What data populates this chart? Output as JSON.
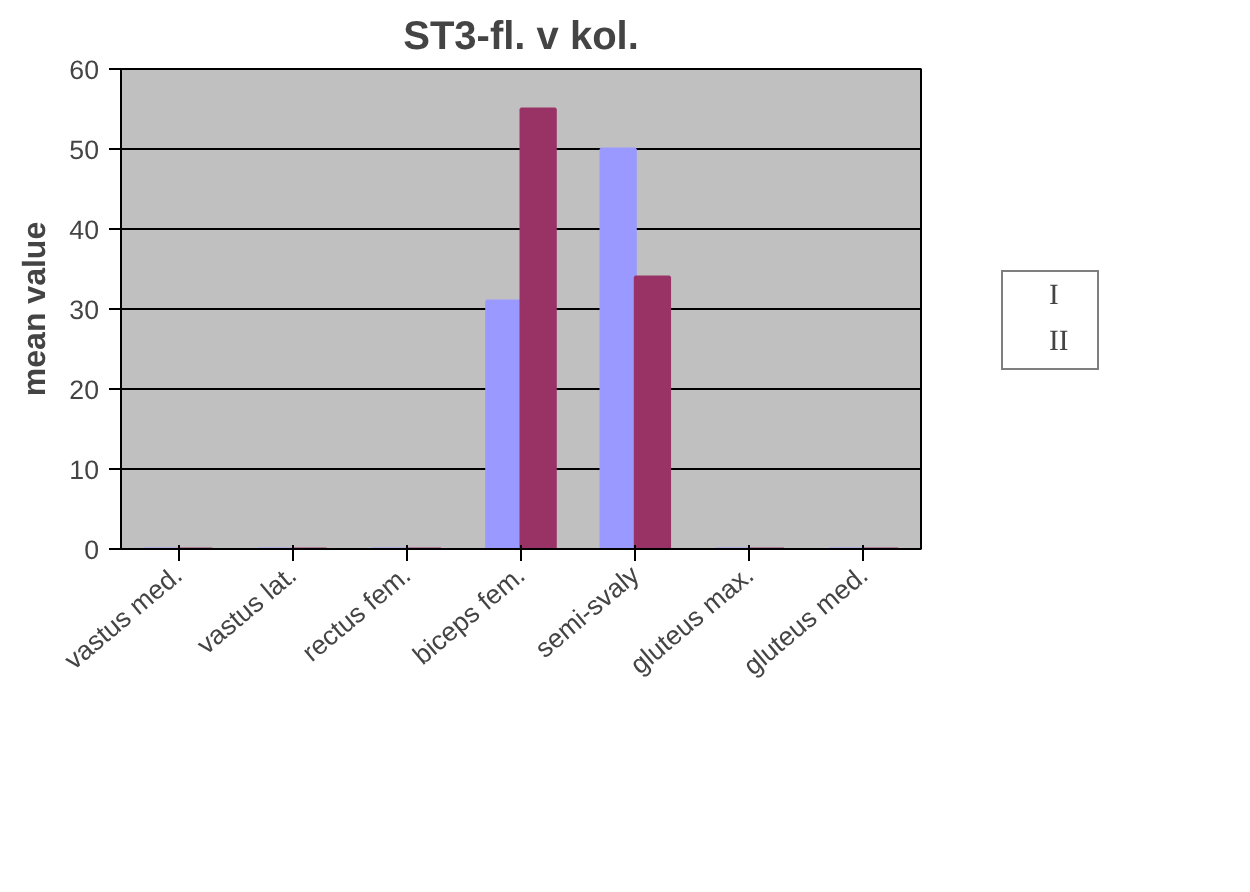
{
  "chart_data": {
    "type": "bar",
    "title": "ST3-fl. v kol.",
    "ylabel": "mean value",
    "categories": [
      "vastus med.",
      "vastus lat.",
      "rectus fem.",
      "biceps fem.",
      "semi-svaly",
      "gluteus max.",
      "gluteus med."
    ],
    "series": [
      {
        "name": "I",
        "color": "#9999ff",
        "values": [
          0,
          0,
          0,
          31,
          50,
          0,
          0
        ]
      },
      {
        "name": "II",
        "color": "#993366",
        "values": [
          0,
          0,
          0,
          55,
          34,
          0,
          0
        ]
      }
    ],
    "ylim": [
      0,
      60
    ],
    "yticks": [
      0,
      10,
      20,
      30,
      40,
      50,
      60
    ],
    "grid": "y",
    "legend": "right"
  }
}
